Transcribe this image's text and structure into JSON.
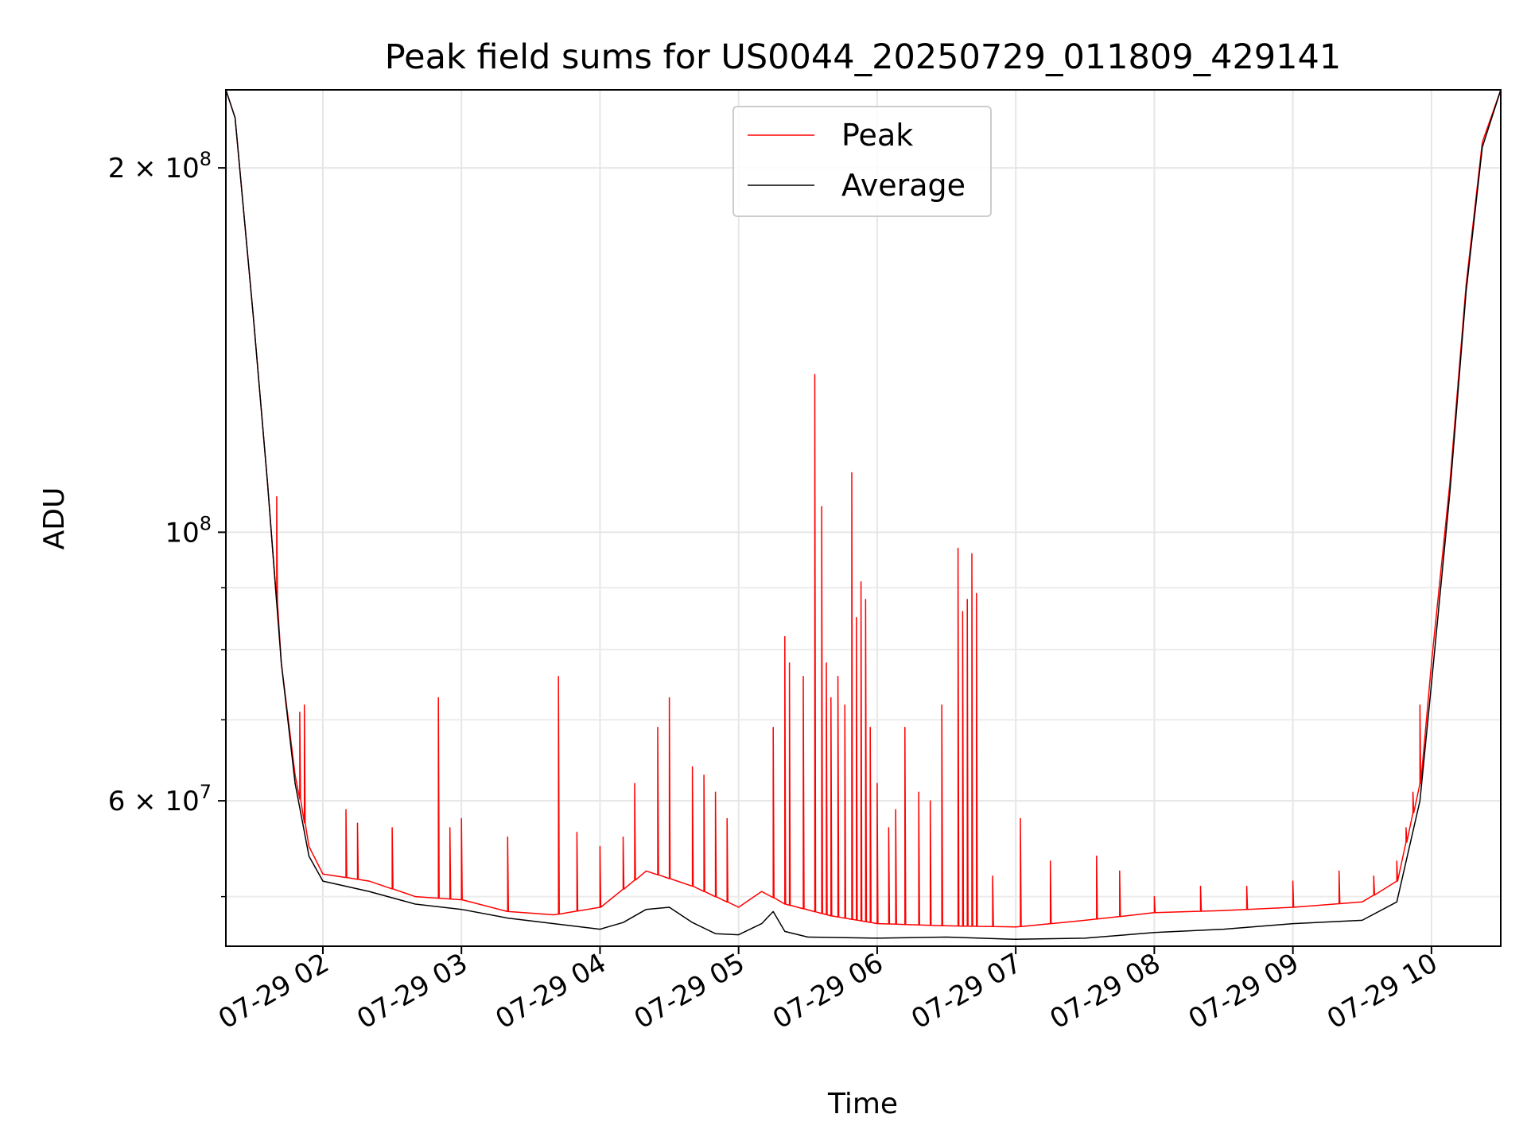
{
  "chart_data": {
    "type": "line",
    "title": "Peak field sums for US0044_20250729_011809_429141",
    "xlabel": "Time",
    "ylabel": "ADU",
    "x_scale": "time",
    "y_scale": "log",
    "xlim": [
      "2025-07-29 01:18",
      "2025-07-29 10:30"
    ],
    "ylim": [
      45500000,
      232000000
    ],
    "x_ticks": [
      "07-29 02",
      "07-29 03",
      "07-29 04",
      "07-29 05",
      "07-29 06",
      "07-29 07",
      "07-29 08",
      "07-29 09",
      "07-29 10"
    ],
    "y_ticks": [
      {
        "value": 200000000,
        "mantissa": "2",
        "exponent": "8"
      },
      {
        "value": 100000000,
        "mantissa": "",
        "exponent": "8"
      },
      {
        "value": 60000000,
        "mantissa": "6",
        "exponent": "7"
      }
    ],
    "grid": true,
    "legend_position": "upper center",
    "series": [
      {
        "name": "Peak",
        "color": "#ff0000",
        "baseline": [
          [
            "2025-07-29 01:18",
            232000000
          ],
          [
            "2025-07-29 01:22",
            220000000
          ],
          [
            "2025-07-29 01:30",
            150000000
          ],
          [
            "2025-07-29 01:36",
            110000000
          ],
          [
            "2025-07-29 01:42",
            78000000
          ],
          [
            "2025-07-29 01:48",
            63000000
          ],
          [
            "2025-07-29 01:54",
            55000000
          ],
          [
            "2025-07-29 02:00",
            52200000
          ],
          [
            "2025-07-29 02:20",
            51500000
          ],
          [
            "2025-07-29 02:40",
            50000000
          ],
          [
            "2025-07-29 03:00",
            49700000
          ],
          [
            "2025-07-29 03:20",
            48600000
          ],
          [
            "2025-07-29 03:40",
            48300000
          ],
          [
            "2025-07-29 04:00",
            49000000
          ],
          [
            "2025-07-29 04:20",
            52500000
          ],
          [
            "2025-07-29 04:40",
            51000000
          ],
          [
            "2025-07-29 05:00",
            49000000
          ],
          [
            "2025-07-29 05:10",
            50500000
          ],
          [
            "2025-07-29 05:20",
            49300000
          ],
          [
            "2025-07-29 05:40",
            48200000
          ],
          [
            "2025-07-29 06:00",
            47500000
          ],
          [
            "2025-07-29 06:30",
            47300000
          ],
          [
            "2025-07-29 07:00",
            47200000
          ],
          [
            "2025-07-29 07:30",
            47800000
          ],
          [
            "2025-07-29 08:00",
            48500000
          ],
          [
            "2025-07-29 08:30",
            48700000
          ],
          [
            "2025-07-29 09:00",
            49000000
          ],
          [
            "2025-07-29 09:30",
            49500000
          ],
          [
            "2025-07-29 09:45",
            51500000
          ],
          [
            "2025-07-29 09:55",
            62000000
          ],
          [
            "2025-07-29 10:00",
            78000000
          ],
          [
            "2025-07-29 10:08",
            110000000
          ],
          [
            "2025-07-29 10:15",
            160000000
          ],
          [
            "2025-07-29 10:22",
            210000000
          ],
          [
            "2025-07-29 10:30",
            232000000
          ]
        ],
        "spikes": [
          [
            "2025-07-29 01:40",
            107000000
          ],
          [
            "2025-07-29 01:50",
            71000000
          ],
          [
            "2025-07-29 01:52",
            72000000
          ],
          [
            "2025-07-29 02:10",
            59000000
          ],
          [
            "2025-07-29 02:15",
            57500000
          ],
          [
            "2025-07-29 02:30",
            57000000
          ],
          [
            "2025-07-29 02:50",
            73000000
          ],
          [
            "2025-07-29 02:55",
            57000000
          ],
          [
            "2025-07-29 03:00",
            58000000
          ],
          [
            "2025-07-29 03:20",
            56000000
          ],
          [
            "2025-07-29 03:42",
            76000000
          ],
          [
            "2025-07-29 03:50",
            56500000
          ],
          [
            "2025-07-29 04:00",
            55000000
          ],
          [
            "2025-07-29 04:10",
            56000000
          ],
          [
            "2025-07-29 04:15",
            62000000
          ],
          [
            "2025-07-29 04:25",
            69000000
          ],
          [
            "2025-07-29 04:30",
            73000000
          ],
          [
            "2025-07-29 04:40",
            64000000
          ],
          [
            "2025-07-29 04:45",
            63000000
          ],
          [
            "2025-07-29 04:50",
            61000000
          ],
          [
            "2025-07-29 04:55",
            58000000
          ],
          [
            "2025-07-29 05:15",
            69000000
          ],
          [
            "2025-07-29 05:20",
            82000000
          ],
          [
            "2025-07-29 05:22",
            78000000
          ],
          [
            "2025-07-29 05:28",
            76000000
          ],
          [
            "2025-07-29 05:33",
            135000000
          ],
          [
            "2025-07-29 05:36",
            105000000
          ],
          [
            "2025-07-29 05:38",
            78000000
          ],
          [
            "2025-07-29 05:40",
            73000000
          ],
          [
            "2025-07-29 05:43",
            76000000
          ],
          [
            "2025-07-29 05:46",
            72000000
          ],
          [
            "2025-07-29 05:49",
            112000000
          ],
          [
            "2025-07-29 05:51",
            85000000
          ],
          [
            "2025-07-29 05:53",
            91000000
          ],
          [
            "2025-07-29 05:55",
            88000000
          ],
          [
            "2025-07-29 05:57",
            69000000
          ],
          [
            "2025-07-29 06:00",
            62000000
          ],
          [
            "2025-07-29 06:05",
            57000000
          ],
          [
            "2025-07-29 06:08",
            59000000
          ],
          [
            "2025-07-29 06:12",
            69000000
          ],
          [
            "2025-07-29 06:18",
            61000000
          ],
          [
            "2025-07-29 06:23",
            60000000
          ],
          [
            "2025-07-29 06:28",
            72000000
          ],
          [
            "2025-07-29 06:35",
            97000000
          ],
          [
            "2025-07-29 06:37",
            86000000
          ],
          [
            "2025-07-29 06:39",
            88000000
          ],
          [
            "2025-07-29 06:41",
            96000000
          ],
          [
            "2025-07-29 06:43",
            89000000
          ],
          [
            "2025-07-29 06:50",
            52000000
          ],
          [
            "2025-07-29 07:02",
            58000000
          ],
          [
            "2025-07-29 07:15",
            53500000
          ],
          [
            "2025-07-29 07:35",
            54000000
          ],
          [
            "2025-07-29 07:45",
            52500000
          ],
          [
            "2025-07-29 08:00",
            50000000
          ],
          [
            "2025-07-29 08:20",
            51000000
          ],
          [
            "2025-07-29 08:40",
            51000000
          ],
          [
            "2025-07-29 09:00",
            51500000
          ],
          [
            "2025-07-29 09:20",
            52500000
          ],
          [
            "2025-07-29 09:35",
            52000000
          ],
          [
            "2025-07-29 09:45",
            53500000
          ],
          [
            "2025-07-29 09:49",
            57000000
          ],
          [
            "2025-07-29 09:52",
            61000000
          ],
          [
            "2025-07-29 09:55",
            72000000
          ]
        ]
      },
      {
        "name": "Average",
        "color": "#000000",
        "points": [
          [
            "2025-07-29 01:18",
            232000000
          ],
          [
            "2025-07-29 01:22",
            220000000
          ],
          [
            "2025-07-29 01:30",
            150000000
          ],
          [
            "2025-07-29 01:36",
            110000000
          ],
          [
            "2025-07-29 01:42",
            78000000
          ],
          [
            "2025-07-29 01:48",
            62000000
          ],
          [
            "2025-07-29 01:54",
            54000000
          ],
          [
            "2025-07-29 02:00",
            51500000
          ],
          [
            "2025-07-29 02:20",
            50500000
          ],
          [
            "2025-07-29 02:40",
            49300000
          ],
          [
            "2025-07-29 03:00",
            48800000
          ],
          [
            "2025-07-29 03:20",
            48000000
          ],
          [
            "2025-07-29 03:40",
            47500000
          ],
          [
            "2025-07-29 04:00",
            47000000
          ],
          [
            "2025-07-29 04:10",
            47600000
          ],
          [
            "2025-07-29 04:20",
            48800000
          ],
          [
            "2025-07-29 04:30",
            49000000
          ],
          [
            "2025-07-29 04:40",
            47600000
          ],
          [
            "2025-07-29 04:50",
            46600000
          ],
          [
            "2025-07-29 05:00",
            46500000
          ],
          [
            "2025-07-29 05:10",
            47500000
          ],
          [
            "2025-07-29 05:15",
            48600000
          ],
          [
            "2025-07-29 05:20",
            46800000
          ],
          [
            "2025-07-29 05:30",
            46300000
          ],
          [
            "2025-07-29 06:00",
            46200000
          ],
          [
            "2025-07-29 06:30",
            46300000
          ],
          [
            "2025-07-29 07:00",
            46100000
          ],
          [
            "2025-07-29 07:30",
            46200000
          ],
          [
            "2025-07-29 08:00",
            46700000
          ],
          [
            "2025-07-29 08:30",
            47000000
          ],
          [
            "2025-07-29 09:00",
            47500000
          ],
          [
            "2025-07-29 09:30",
            47800000
          ],
          [
            "2025-07-29 09:45",
            49500000
          ],
          [
            "2025-07-29 09:55",
            60000000
          ],
          [
            "2025-07-29 10:00",
            75000000
          ],
          [
            "2025-07-29 10:08",
            108000000
          ],
          [
            "2025-07-29 10:15",
            158000000
          ],
          [
            "2025-07-29 10:22",
            208000000
          ],
          [
            "2025-07-29 10:30",
            232000000
          ]
        ]
      }
    ]
  }
}
